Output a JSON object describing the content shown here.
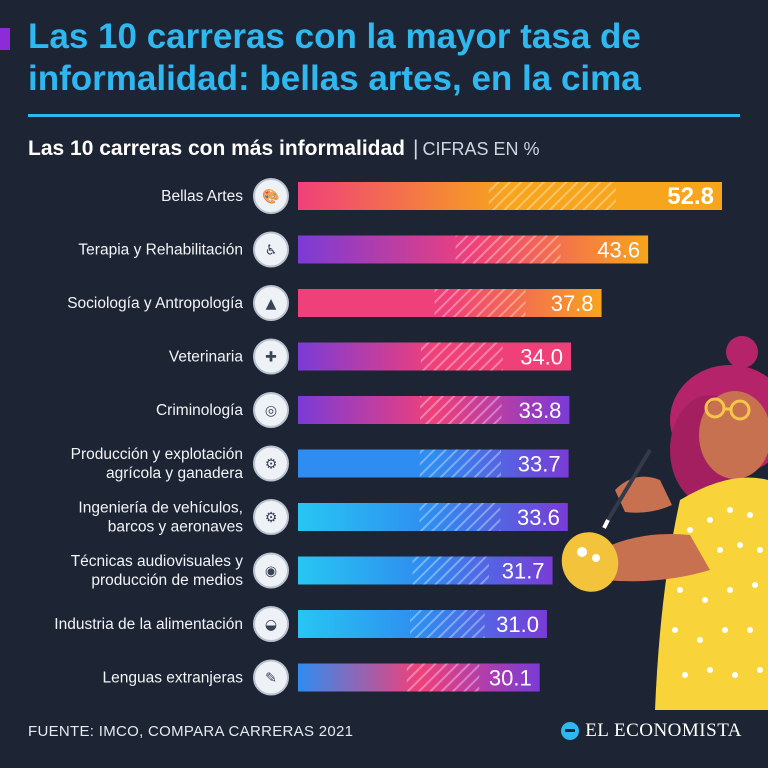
{
  "header": {
    "title": "Las 10 carreras con la mayor tasa de informalidad: bellas artes, en la cima",
    "subtitle_main": "Las 10 carreras con más informalidad",
    "subtitle_sep": "|",
    "subtitle_units": "CIFRAS EN %"
  },
  "footer": {
    "source": "FUENTE: IMCO, COMPARA CARRERAS 2021",
    "brand": "EL ECONOMISTA"
  },
  "colors": {
    "background": "#1d2433",
    "title": "#2fb7f0",
    "orange": "#f7a51c",
    "pink": "#f0407a",
    "purple": "#7a3bd6",
    "blue": "#2f8cf0",
    "cyan": "#27c6f2"
  },
  "chart_data": {
    "type": "bar",
    "orientation": "horizontal",
    "title": "Las 10 carreras con más informalidad",
    "units": "CIFRAS EN %",
    "categories": [
      [
        "Bellas Artes"
      ],
      [
        "Terapia y Rehabilitación"
      ],
      [
        "Sociología y Antropología"
      ],
      [
        "Veterinaria"
      ],
      [
        "Criminología"
      ],
      [
        "Producción y explotación",
        "agrícola y ganadera"
      ],
      [
        "Ingeniería de vehículos,",
        "barcos y aeronaves"
      ],
      [
        "Técnicas audiovisuales y",
        "producción de medios"
      ],
      [
        "Industria de la alimentación"
      ],
      [
        "Lenguas extranjeras"
      ]
    ],
    "values": [
      52.8,
      43.6,
      37.8,
      34.0,
      33.8,
      33.7,
      33.6,
      31.7,
      31.0,
      30.1
    ],
    "value_labels": [
      "52.8",
      "43.6",
      "37.8",
      "34.0",
      "33.8",
      "33.7",
      "33.6",
      "31.7",
      "31.0",
      "30.1"
    ],
    "icons": [
      "palette-icon",
      "therapy-icon",
      "pyramid-icon",
      "veterinarian-icon",
      "fingerprint-icon",
      "tractor-icon",
      "engine-icon",
      "film-reel-icon",
      "food-bowl-icon",
      "languages-icon"
    ],
    "xlim": [
      0,
      52.8
    ]
  }
}
